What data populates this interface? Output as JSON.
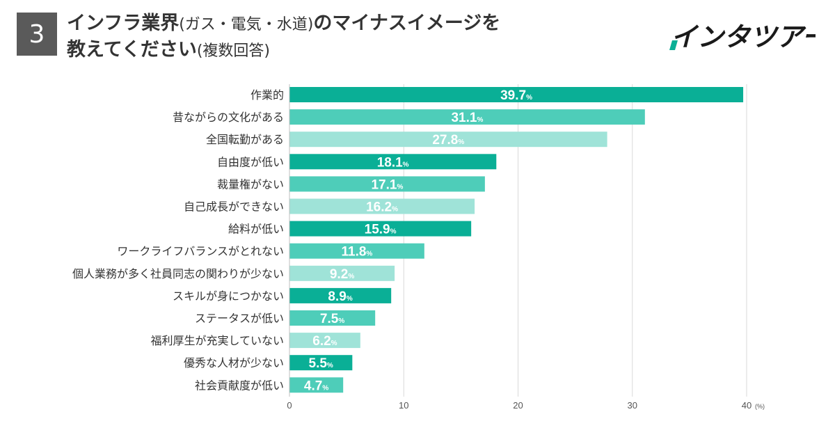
{
  "header": {
    "question_number": "3",
    "title_main": "インフラ業界",
    "title_paren": "(ガス・電気・水道)",
    "title_rest": "のマイナスイメージを",
    "title_line2": "教えてください",
    "title_note": "(複数回答)"
  },
  "brand": {
    "name": "インタツアー"
  },
  "colors": {
    "dark": "#0aaf96",
    "medium": "#4ecdb9",
    "light": "#9fe3d8",
    "grid": "#d9d9d9",
    "text": "#333333"
  },
  "chart_data": {
    "type": "bar",
    "orientation": "horizontal",
    "categories": [
      "作業的",
      "昔ながらの文化がある",
      "全国転勤がある",
      "自由度が低い",
      "裁量権がない",
      "自己成長ができない",
      "給料が低い",
      "ワークライフバランスがとれない",
      "個人業務が多く社員同志の関わりが少ない",
      "スキルが身につかない",
      "ステータスが低い",
      "福利厚生が充実していない",
      "優秀な人材が少ない",
      "社会貢献度が低い"
    ],
    "values": [
      39.7,
      31.1,
      27.8,
      18.1,
      17.1,
      16.2,
      15.9,
      11.8,
      9.2,
      8.9,
      7.5,
      6.2,
      5.5,
      4.7
    ],
    "value_labels": [
      "39.7",
      "31.1",
      "27.8",
      "18.1",
      "17.1",
      "16.2",
      "15.9",
      "11.8",
      "9.2",
      "8.9",
      "7.5",
      "6.2",
      "5.5",
      "4.7"
    ],
    "value_suffix": "%",
    "color_cycle": [
      "dark",
      "medium",
      "light"
    ],
    "xlim": [
      0,
      40
    ],
    "xticks": [
      "0",
      "10",
      "20",
      "30",
      "40"
    ],
    "xtick_values": [
      0,
      10,
      20,
      30,
      40
    ],
    "unit_label": "(%)",
    "grid": true
  }
}
